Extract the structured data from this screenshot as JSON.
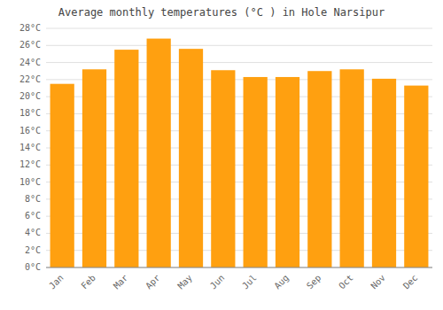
{
  "chart_data": {
    "type": "bar",
    "title": "Average monthly temperatures (°C ) in Hole Narsipur",
    "categories": [
      "Jan",
      "Feb",
      "Mar",
      "Apr",
      "May",
      "Jun",
      "Jul",
      "Aug",
      "Sep",
      "Oct",
      "Nov",
      "Dec"
    ],
    "values": [
      21.5,
      23.2,
      25.5,
      26.8,
      25.6,
      23.1,
      22.3,
      22.3,
      23.0,
      23.2,
      22.1,
      21.3
    ],
    "color": "#FFA010",
    "ylim": [
      0,
      28
    ],
    "yticks": [
      {
        "value": 0,
        "label": "0°C"
      },
      {
        "value": 2,
        "label": "2°C"
      },
      {
        "value": 4,
        "label": "4°C"
      },
      {
        "value": 6,
        "label": "6°C"
      },
      {
        "value": 8,
        "label": "8°C"
      },
      {
        "value": 10,
        "label": "10°C"
      },
      {
        "value": 12,
        "label": "12°C"
      },
      {
        "value": 14,
        "label": "14°C"
      },
      {
        "value": 16,
        "label": "16°C"
      },
      {
        "value": 18,
        "label": "18°C"
      },
      {
        "value": 20,
        "label": "20°C"
      },
      {
        "value": 22,
        "label": "22°C"
      },
      {
        "value": 24,
        "label": "24°C"
      },
      {
        "value": 26,
        "label": "26°C"
      },
      {
        "value": 28,
        "label": "28°C"
      }
    ],
    "grid": true
  }
}
